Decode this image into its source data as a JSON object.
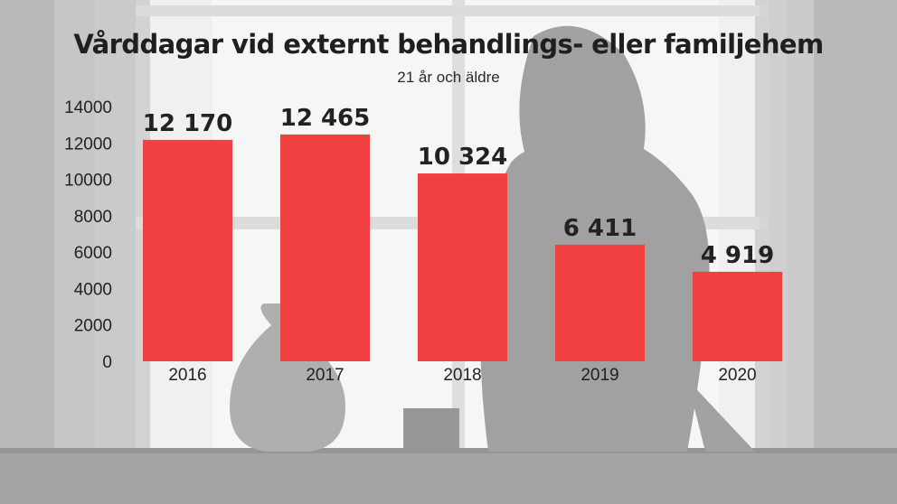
{
  "chart_data": {
    "type": "bar",
    "title": "Vårddagar vid externt behandlings- eller familjehem",
    "subtitle": "21 år och äldre",
    "categories": [
      "2016",
      "2017",
      "2018",
      "2019",
      "2020"
    ],
    "values": [
      12170,
      12465,
      10324,
      6411,
      4919
    ],
    "value_labels": [
      "12 170",
      "12 465",
      "10 324",
      "6 411",
      "4 919"
    ],
    "y_ticks": [
      0,
      2000,
      4000,
      6000,
      8000,
      10000,
      12000,
      14000
    ],
    "ylim": [
      0,
      14000
    ],
    "xlabel": "",
    "ylabel": "",
    "grid": false,
    "legend": "none",
    "bar_color": "#f04040",
    "text_color": "#222222"
  }
}
